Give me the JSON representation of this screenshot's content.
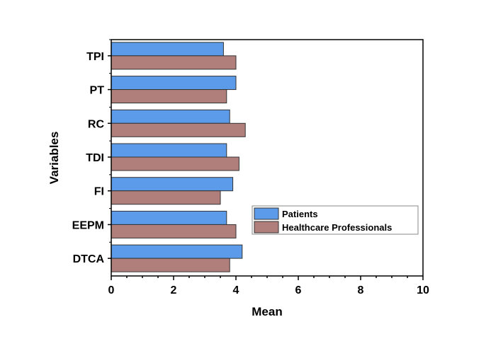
{
  "chart_data": {
    "type": "bar",
    "orientation": "horizontal",
    "title": "",
    "xlabel": "Mean",
    "ylabel": "Variables",
    "xlim": [
      0,
      10
    ],
    "xticks": [
      0,
      2,
      4,
      6,
      8,
      10
    ],
    "categories": [
      "TPI",
      "PT",
      "RC",
      "TDI",
      "FI",
      "EEPM",
      "DTCA"
    ],
    "series": [
      {
        "name": "Patients",
        "color": "#5b9bea",
        "values": [
          3.6,
          4.0,
          3.8,
          3.7,
          3.9,
          3.7,
          4.2
        ]
      },
      {
        "name": "Healthcare Professionals",
        "color": "#b07f7c",
        "values": [
          4.0,
          3.7,
          4.3,
          4.1,
          3.5,
          4.0,
          3.8
        ]
      }
    ],
    "grid": false,
    "legend_position": "right-middle"
  }
}
